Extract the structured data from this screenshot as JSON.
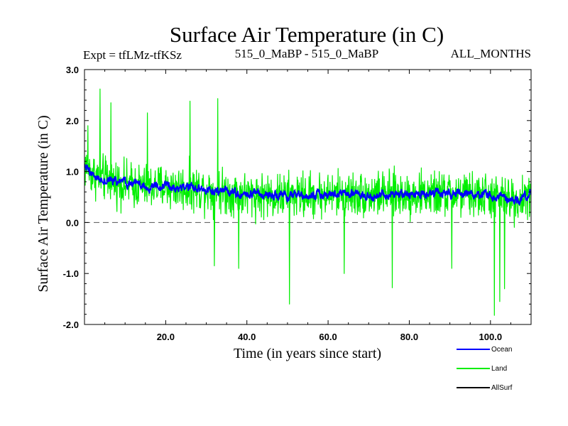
{
  "chart_data": {
    "type": "line",
    "title": "Surface Air Temperature (in C)",
    "subtitle_left": "Expt = tfLMz-tfKSz",
    "subtitle_center": "515_0_MaBP - 515_0_MaBP",
    "subtitle_right": "ALL_MONTHS",
    "xlabel": "Time (in years since start)",
    "ylabel": "Surface Air Temperature (in C)",
    "xlim": [
      0,
      110
    ],
    "ylim": [
      -2.0,
      3.0
    ],
    "x_ticks": [
      20,
      40,
      60,
      80,
      100
    ],
    "x_tick_labels": [
      "20.0",
      "40.0",
      "60.0",
      "80.0",
      "100.0"
    ],
    "y_ticks": [
      -2,
      -1,
      0,
      1,
      2,
      3
    ],
    "y_tick_labels": [
      "-2.0",
      "-1.0",
      "0.0",
      "1.0",
      "2.0",
      "3.0"
    ],
    "zero_line": {
      "value": 0,
      "style": "dashed"
    },
    "x_step_years": 0.0833,
    "series": [
      {
        "name": "Land",
        "color": "#00ee00",
        "trend_anchors_x": [
          0,
          2,
          5,
          10,
          15,
          20,
          30,
          40,
          50,
          60,
          70,
          80,
          90,
          100,
          103,
          107,
          110
        ],
        "trend_anchors_y": [
          1.1,
          0.95,
          0.85,
          0.75,
          0.7,
          0.7,
          0.65,
          0.55,
          0.52,
          0.55,
          0.55,
          0.55,
          0.55,
          0.52,
          0.45,
          0.45,
          0.55
        ],
        "noise_amplitude": 0.65,
        "peaks": [
          {
            "x": 3.8,
            "y": 2.62
          },
          {
            "x": 0.8,
            "y": 1.9
          },
          {
            "x": 6.5,
            "y": 2.35
          },
          {
            "x": 26.0,
            "y": 2.38
          },
          {
            "x": 32.8,
            "y": 2.43
          },
          {
            "x": 15.5,
            "y": 2.15
          },
          {
            "x": 50.5,
            "y": -1.6
          },
          {
            "x": 101.0,
            "y": -1.82
          },
          {
            "x": 102.3,
            "y": -1.55
          },
          {
            "x": 103.5,
            "y": -1.3
          },
          {
            "x": 75.8,
            "y": -1.28
          },
          {
            "x": 38.0,
            "y": -0.9
          },
          {
            "x": 32.0,
            "y": -0.85
          },
          {
            "x": 90.5,
            "y": -0.9
          },
          {
            "x": 64.0,
            "y": -1.0
          }
        ]
      },
      {
        "name": "Ocean",
        "color": "#0000ff",
        "trend_anchors_x": [
          0,
          2,
          5,
          10,
          15,
          20,
          30,
          40,
          50,
          60,
          70,
          80,
          90,
          100,
          103,
          107,
          110
        ],
        "trend_anchors_y": [
          1.1,
          0.92,
          0.85,
          0.76,
          0.7,
          0.7,
          0.65,
          0.55,
          0.52,
          0.55,
          0.55,
          0.56,
          0.56,
          0.54,
          0.46,
          0.45,
          0.56
        ],
        "noise_amplitude": 0.06
      },
      {
        "name": "AllSurf",
        "color": "#000000",
        "trend_anchors_x": [],
        "trend_anchors_y": []
      }
    ],
    "legend": {
      "position": "bottom-right",
      "items": [
        "Ocean",
        "Land",
        "AllSurf"
      ],
      "colors": [
        "#0000ff",
        "#00ee00",
        "#000000"
      ]
    }
  }
}
